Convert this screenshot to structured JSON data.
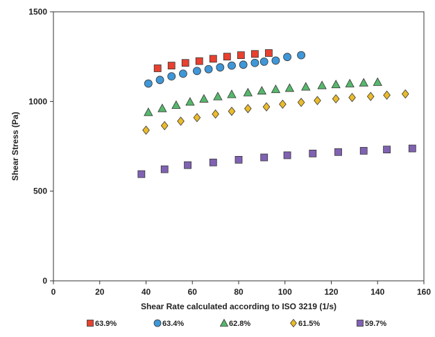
{
  "chart_data": {
    "type": "scatter",
    "xlabel": "Shear Rate calculated according to ISO 3219 (1/s)",
    "ylabel": "Shear Stress (Pa)",
    "xlim": [
      0,
      160
    ],
    "ylim": [
      0,
      1500
    ],
    "x_ticks": [
      0,
      20,
      40,
      60,
      80,
      100,
      120,
      140,
      160
    ],
    "y_ticks": [
      0,
      500,
      1000,
      1500
    ],
    "grid": false,
    "legend_position": "bottom",
    "series": [
      {
        "name": "63.9%",
        "marker": "square",
        "color": "#e8412f",
        "x": [
          45,
          51,
          57,
          63,
          69,
          75,
          81,
          87,
          93
        ],
        "y": [
          1185,
          1200,
          1215,
          1225,
          1238,
          1250,
          1258,
          1265,
          1270
        ]
      },
      {
        "name": "63.4%",
        "marker": "circle",
        "color": "#3f97d8",
        "x": [
          41,
          46,
          51,
          56,
          62,
          67,
          72,
          77,
          82,
          87,
          91,
          96,
          101,
          107
        ],
        "y": [
          1100,
          1120,
          1140,
          1155,
          1170,
          1180,
          1190,
          1200,
          1205,
          1215,
          1222,
          1228,
          1248,
          1258
        ]
      },
      {
        "name": "62.8%",
        "marker": "triangle",
        "color": "#56b86c",
        "x": [
          41,
          47,
          53,
          59,
          65,
          71,
          77,
          84,
          90,
          96,
          102,
          109,
          116,
          122,
          128,
          134,
          140
        ],
        "y": [
          940,
          962,
          980,
          998,
          1015,
          1028,
          1040,
          1050,
          1060,
          1068,
          1075,
          1082,
          1090,
          1095,
          1100,
          1105,
          1108
        ]
      },
      {
        "name": "61.5%",
        "marker": "diamond",
        "color": "#eabb2a",
        "x": [
          40,
          48,
          55,
          62,
          70,
          77,
          84,
          92,
          99,
          107,
          114,
          122,
          129,
          137,
          144,
          152
        ],
        "y": [
          840,
          865,
          890,
          910,
          930,
          945,
          960,
          970,
          985,
          995,
          1005,
          1015,
          1022,
          1028,
          1035,
          1042
        ]
      },
      {
        "name": "59.7%",
        "marker": "square",
        "color": "#8062b3",
        "x": [
          38,
          48,
          58,
          69,
          80,
          91,
          101,
          112,
          123,
          134,
          144,
          155
        ],
        "y": [
          595,
          622,
          645,
          660,
          675,
          688,
          700,
          710,
          718,
          725,
          732,
          738
        ]
      }
    ]
  }
}
